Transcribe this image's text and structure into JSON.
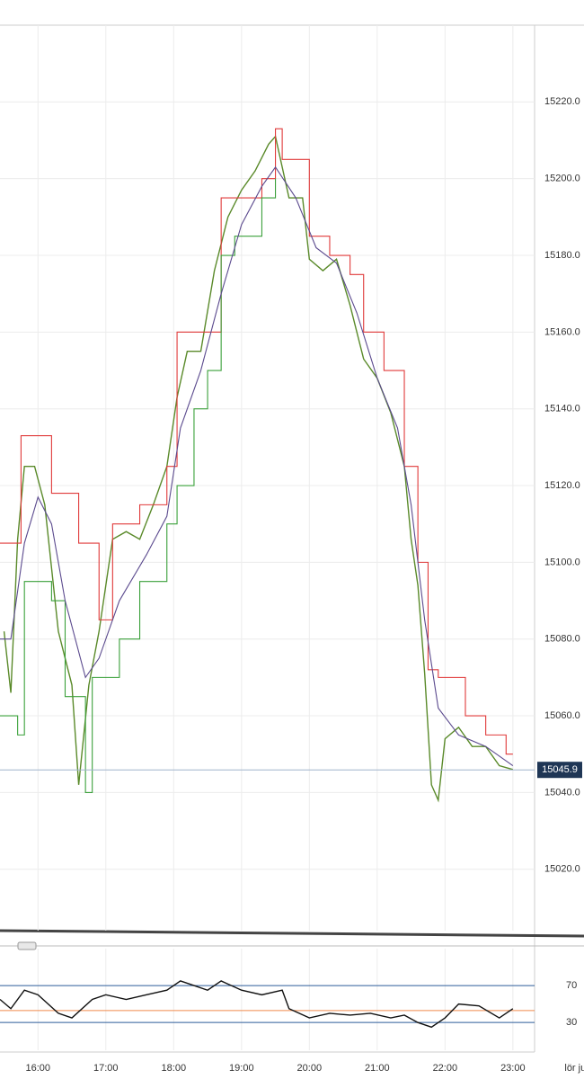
{
  "chart_data": [
    {
      "type": "line",
      "xlim": [
        15.44,
        23.32
      ],
      "ylim": [
        15004,
        15240
      ],
      "xticks": [
        {
          "value": 16,
          "label": "16:00"
        },
        {
          "value": 17,
          "label": "17:00"
        },
        {
          "value": 18,
          "label": "18:00"
        },
        {
          "value": 19,
          "label": "19:00"
        },
        {
          "value": 20,
          "label": "20:00"
        },
        {
          "value": 21,
          "label": "21:00"
        },
        {
          "value": 22,
          "label": "22:00"
        },
        {
          "value": 23,
          "label": "23:00"
        },
        {
          "value": 23.92,
          "label": "lör ju"
        }
      ],
      "yticks": [
        {
          "value": 15020,
          "label": "15020.0"
        },
        {
          "value": 15040,
          "label": "15040.0"
        },
        {
          "value": 15060,
          "label": "15060.0"
        },
        {
          "value": 15080,
          "label": "15080.0"
        },
        {
          "value": 15100,
          "label": "15100.0"
        },
        {
          "value": 15120,
          "label": "15120.0"
        },
        {
          "value": 15140,
          "label": "15140.0"
        },
        {
          "value": 15160,
          "label": "15160.0"
        },
        {
          "value": 15180,
          "label": "15180.0"
        },
        {
          "value": 15200,
          "label": "15200.0"
        },
        {
          "value": 15220,
          "label": "15220.0"
        }
      ],
      "grid": true,
      "last_price": 15045.9,
      "series": [
        {
          "color": "#5a8a2a",
          "x": [
            15.5,
            15.6,
            15.7,
            15.8,
            15.95,
            16.1,
            16.3,
            16.5,
            16.6,
            16.75,
            16.9,
            17.1,
            17.3,
            17.5,
            17.7,
            17.9,
            18.05,
            18.2,
            18.4,
            18.6,
            18.8,
            19.0,
            19.2,
            19.4,
            19.5,
            19.7,
            19.9,
            20.0,
            20.2,
            20.4,
            20.6,
            20.8,
            21.0,
            21.2,
            21.4,
            21.5,
            21.6,
            21.7,
            21.8,
            21.9,
            22.0,
            22.2,
            22.4,
            22.6,
            22.8,
            23.0
          ],
          "values": [
            15082,
            15066,
            15106,
            15125,
            15125,
            15115,
            15082,
            15068,
            15042,
            15068,
            15082,
            15106,
            15108,
            15106,
            15115,
            15125,
            15143,
            15155,
            15155,
            15176,
            15190,
            15197,
            15202,
            15209,
            15211,
            15195,
            15195,
            15179,
            15176,
            15179,
            15167,
            15153,
            15148,
            15139,
            15125,
            15106,
            15094,
            15071,
            15042,
            15038,
            15054,
            15057,
            15052,
            15052,
            15047,
            15046
          ]
        },
        {
          "color": "#e03a3a",
          "step": true,
          "x": [
            15.44,
            15.75,
            16.2,
            16.6,
            16.9,
            17.1,
            17.5,
            17.9,
            18.05,
            18.7,
            19.3,
            19.5,
            19.6,
            20.0,
            20.3,
            20.6,
            20.8,
            21.1,
            21.4,
            21.6,
            21.75,
            21.9,
            22.3,
            22.6,
            22.9,
            23.0
          ],
          "values": [
            15105,
            15133,
            15118,
            15105,
            15085,
            15110,
            15115,
            15125,
            15160,
            15195,
            15200,
            15213,
            15205,
            15185,
            15180,
            15175,
            15160,
            15150,
            15125,
            15100,
            15072,
            15070,
            15060,
            15055,
            15050,
            15050
          ]
        },
        {
          "color": "#3aa03a",
          "step": true,
          "x": [
            15.44,
            15.7,
            15.8,
            16.2,
            16.4,
            16.7,
            16.8,
            17.2,
            17.5,
            17.9,
            18.05,
            18.3,
            18.5,
            18.7,
            18.9,
            19.3,
            19.5
          ],
          "values": [
            15060,
            15055,
            15095,
            15090,
            15065,
            15040,
            15070,
            15080,
            15095,
            15110,
            15120,
            15140,
            15150,
            15180,
            15185,
            15195,
            15200
          ]
        },
        {
          "color": "#5b4a8e",
          "x": [
            15.44,
            15.6,
            15.8,
            16.0,
            16.2,
            16.4,
            16.7,
            16.9,
            17.2,
            17.6,
            17.9,
            18.1,
            18.4,
            18.7,
            19.0,
            19.3,
            19.5,
            19.8,
            20.1,
            20.4,
            20.7,
            21.0,
            21.3,
            21.5,
            21.7,
            21.9,
            22.2,
            22.6,
            23.0
          ],
          "values": [
            15080,
            15080,
            15105,
            15117,
            15110,
            15090,
            15070,
            15075,
            15090,
            15102,
            15112,
            15135,
            15150,
            15170,
            15188,
            15198,
            15203,
            15195,
            15182,
            15178,
            15165,
            15148,
            15135,
            15115,
            15085,
            15062,
            15055,
            15052,
            15047
          ]
        }
      ]
    },
    {
      "type": "line",
      "xlim": [
        15.44,
        23.32
      ],
      "ylim": [
        0,
        110
      ],
      "yticks": [
        70,
        30
      ],
      "level": 43,
      "level_color": "#f08a4b",
      "series": [
        {
          "color": "#111111",
          "x": [
            15.44,
            15.6,
            15.8,
            16.0,
            16.3,
            16.5,
            16.8,
            17.0,
            17.3,
            17.6,
            17.9,
            18.1,
            18.3,
            18.5,
            18.7,
            19.0,
            19.3,
            19.6,
            19.7,
            20.0,
            20.3,
            20.6,
            20.9,
            21.2,
            21.4,
            21.6,
            21.8,
            22.0,
            22.2,
            22.5,
            22.8,
            23.0
          ],
          "values": [
            55,
            45,
            65,
            60,
            40,
            35,
            55,
            60,
            55,
            60,
            65,
            75,
            70,
            65,
            75,
            65,
            60,
            65,
            45,
            35,
            40,
            38,
            40,
            35,
            38,
            30,
            25,
            35,
            50,
            48,
            35,
            45
          ]
        }
      ]
    }
  ]
}
